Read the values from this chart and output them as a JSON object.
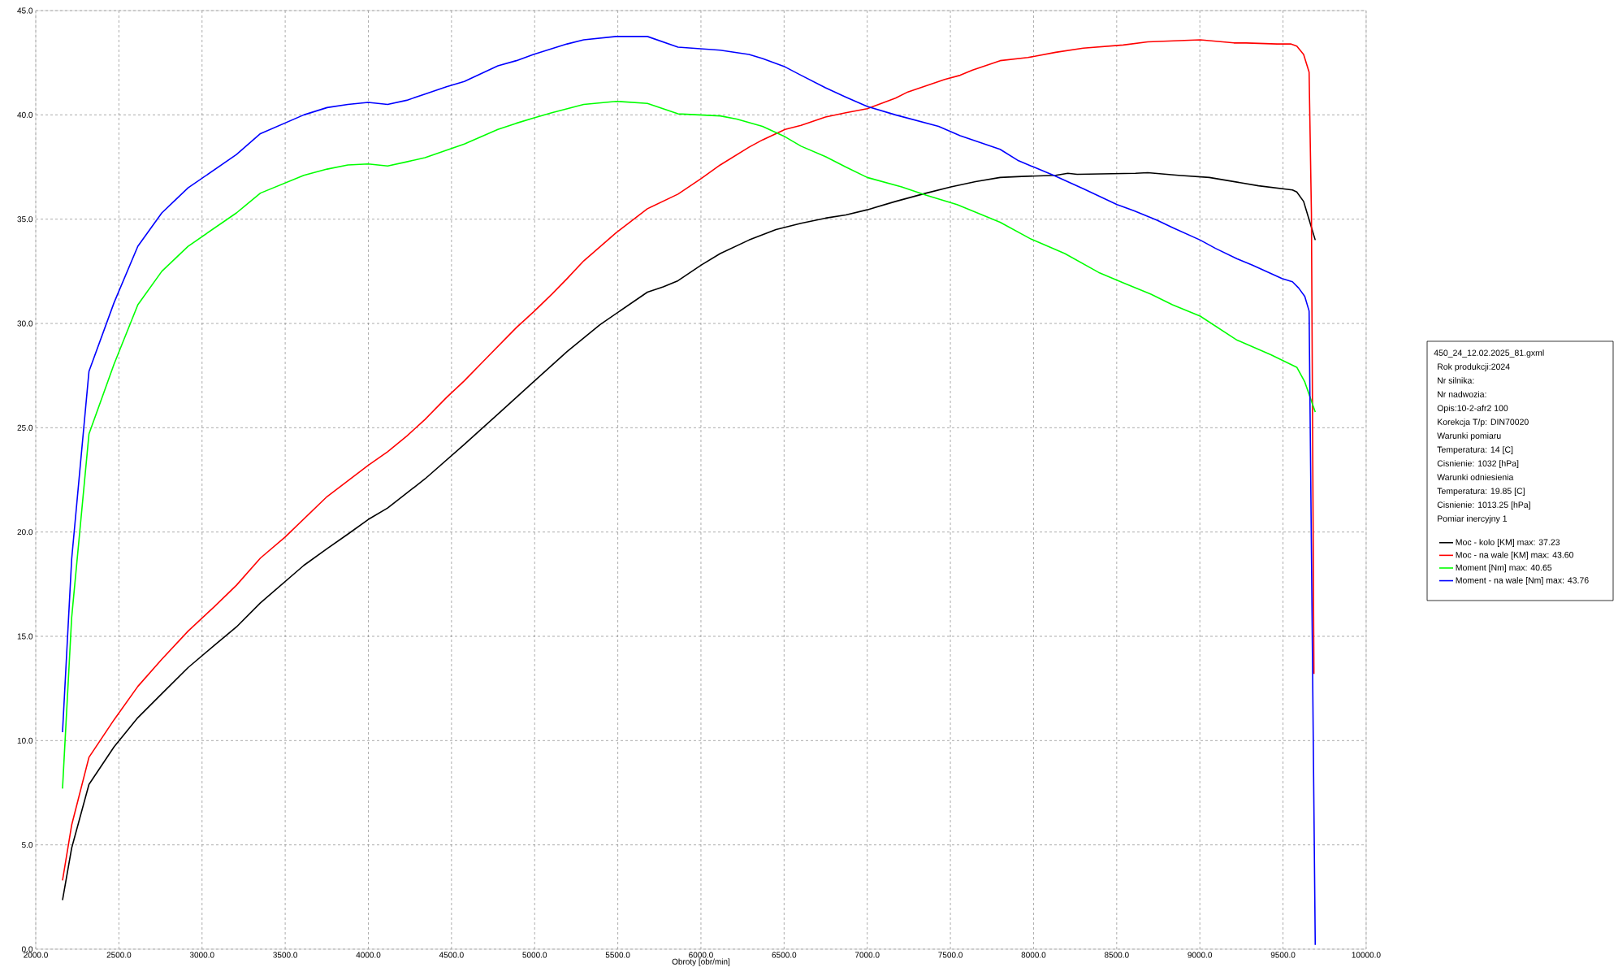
{
  "chart_data": {
    "type": "line",
    "xlabel": "Obroty [obr/min]",
    "xlim": [
      2000,
      10000
    ],
    "ylim": [
      0,
      45
    ],
    "xticks": [
      {
        "value": 2000,
        "label": "2000.0"
      },
      {
        "value": 2500,
        "label": "2500.0"
      },
      {
        "value": 3000,
        "label": "3000.0"
      },
      {
        "value": 3500,
        "label": "3500.0"
      },
      {
        "value": 4000,
        "label": "4000.0"
      },
      {
        "value": 4500,
        "label": "4500.0"
      },
      {
        "value": 5000,
        "label": "5000.0"
      },
      {
        "value": 5500,
        "label": "5500.0"
      },
      {
        "value": 6000,
        "label": "6000.0"
      },
      {
        "value": 6500,
        "label": "6500.0"
      },
      {
        "value": 7000,
        "label": "7000.0"
      },
      {
        "value": 7500,
        "label": "7500.0"
      },
      {
        "value": 8000,
        "label": "8000.0"
      },
      {
        "value": 8500,
        "label": "8500.0"
      },
      {
        "value": 9000,
        "label": "9000.0"
      },
      {
        "value": 9500,
        "label": "9500.0"
      },
      {
        "value": 10000,
        "label": "10000.0"
      }
    ],
    "yticks": [
      {
        "value": 0,
        "label": "0.0"
      },
      {
        "value": 5,
        "label": "5.0"
      },
      {
        "value": 10,
        "label": "10.0"
      },
      {
        "value": 15,
        "label": "15.0"
      },
      {
        "value": 20,
        "label": "20.0"
      },
      {
        "value": 25,
        "label": "25.0"
      },
      {
        "value": 30,
        "label": "30.0"
      },
      {
        "value": 35,
        "label": "35.0"
      },
      {
        "value": 40,
        "label": "40.0"
      },
      {
        "value": 45,
        "label": "45.0"
      }
    ],
    "grid": true,
    "legend": "right",
    "marker": "none",
    "line_style": "solid",
    "annotations": [
      "450_24_12.02.2025_81.gxml",
      "Rok produkcji:2024",
      "Nr silnika:",
      "Nr nadwozia:",
      "Opis:10-2-afr2 100",
      "Korekcja T/p: DIN70020",
      "Warunki pomiaru",
      "Temperatura: 14 [C]",
      "Cisnienie: 1032 [hPa]",
      "Warunki odniesienia",
      "Temperatura: 19.85 [C]",
      "Cisnienie: 1013.25 [hPa]",
      "Pomiar inercyjny 1"
    ],
    "series": [
      {
        "name": "Moc - kolo [KM] max: 37.23",
        "color": "#000000",
        "x": [
          2161,
          2216,
          2320,
          2471,
          2614,
          2758,
          2916,
          3071,
          3207,
          3351,
          3612,
          3752,
          3877,
          3999,
          4116,
          4341,
          4577,
          4779,
          4993,
          5195,
          5394,
          5678,
          5773,
          5862,
          6002,
          6116,
          6289,
          6451,
          6602,
          6749,
          6871,
          7000,
          7170,
          7355,
          7503,
          7651,
          7799,
          7929,
          8133,
          8206,
          8262,
          8613,
          8687,
          8872,
          9057,
          9242,
          9353,
          9557,
          9583,
          9624,
          9694
        ],
        "values": [
          2.35,
          4.85,
          7.9,
          9.7,
          11.1,
          12.25,
          13.5,
          14.55,
          15.45,
          16.6,
          18.4,
          19.2,
          19.9,
          20.6,
          21.15,
          22.55,
          24.2,
          25.65,
          27.2,
          28.65,
          29.95,
          31.5,
          31.75,
          32.05,
          32.8,
          33.35,
          34.0,
          34.5,
          34.8,
          35.05,
          35.2,
          35.45,
          35.85,
          36.25,
          36.55,
          36.8,
          37.0,
          37.05,
          37.1,
          37.2,
          37.15,
          37.2,
          37.23,
          37.1,
          37.0,
          36.75,
          36.6,
          36.4,
          36.3,
          35.85,
          34.0
        ]
      },
      {
        "name": "Moc - na wale [KM] max: 43.60",
        "color": "#ff0000",
        "x": [
          2161,
          2216,
          2320,
          2471,
          2614,
          2758,
          2916,
          3071,
          3207,
          3351,
          3498,
          3752,
          3999,
          4116,
          4231,
          4341,
          4470,
          4577,
          4687,
          4890,
          4993,
          5103,
          5195,
          5295,
          5490,
          5678,
          5862,
          6002,
          6116,
          6289,
          6370,
          6506,
          6602,
          6749,
          6871,
          7000,
          7170,
          7244,
          7466,
          7559,
          7633,
          7799,
          7966,
          8133,
          8299,
          8539,
          8687,
          9002,
          9205,
          9279,
          9464,
          9546,
          9583,
          9624,
          9657,
          9671,
          9686
        ],
        "values": [
          3.3,
          5.95,
          9.2,
          11.0,
          12.6,
          13.9,
          15.25,
          16.4,
          17.45,
          18.75,
          19.75,
          21.7,
          23.2,
          23.85,
          24.6,
          25.4,
          26.45,
          27.25,
          28.15,
          29.8,
          30.55,
          31.4,
          32.15,
          33.0,
          34.35,
          35.5,
          36.2,
          36.95,
          37.6,
          38.45,
          38.8,
          39.3,
          39.5,
          39.9,
          40.1,
          40.3,
          40.8,
          41.1,
          41.7,
          41.9,
          42.15,
          42.6,
          42.75,
          43.0,
          43.2,
          43.35,
          43.5,
          43.6,
          43.45,
          43.45,
          43.4,
          43.4,
          43.3,
          42.9,
          42.05,
          35.25,
          13.2
        ]
      },
      {
        "name": "Moment [Nm] max: 40.65",
        "color": "#00ff00",
        "x": [
          2161,
          2216,
          2320,
          2471,
          2614,
          2758,
          2916,
          3207,
          3351,
          3612,
          3752,
          3877,
          3999,
          4116,
          4231,
          4341,
          4577,
          4779,
          4890,
          4993,
          5103,
          5295,
          5490,
          5678,
          5862,
          6116,
          6215,
          6370,
          6506,
          6602,
          6749,
          6871,
          7000,
          7207,
          7355,
          7540,
          7799,
          7984,
          8188,
          8391,
          8539,
          8706,
          8835,
          9002,
          9224,
          9427,
          9583,
          9631,
          9694
        ],
        "values": [
          7.7,
          15.9,
          24.7,
          28.05,
          30.9,
          32.5,
          33.7,
          35.3,
          36.25,
          37.1,
          37.4,
          37.6,
          37.65,
          37.55,
          37.75,
          37.95,
          38.6,
          39.3,
          39.6,
          39.85,
          40.1,
          40.5,
          40.65,
          40.55,
          40.05,
          39.95,
          39.8,
          39.45,
          38.95,
          38.5,
          38.0,
          37.5,
          37.0,
          36.55,
          36.15,
          35.7,
          34.85,
          34.05,
          33.35,
          32.45,
          31.95,
          31.4,
          30.9,
          30.35,
          29.2,
          28.5,
          27.9,
          27.2,
          25.75
        ]
      },
      {
        "name": "Moment - na wale [Nm] max: 43.76",
        "color": "#0000ff",
        "x": [
          2161,
          2216,
          2320,
          2471,
          2614,
          2758,
          2916,
          3207,
          3351,
          3612,
          3752,
          3877,
          3999,
          4116,
          4231,
          4341,
          4470,
          4577,
          4779,
          4890,
          4993,
          5195,
          5295,
          5490,
          5678,
          5862,
          6116,
          6289,
          6370,
          6506,
          6602,
          6749,
          6871,
          7000,
          7170,
          7429,
          7559,
          7799,
          7910,
          8121,
          8302,
          8502,
          8606,
          8743,
          8835,
          9002,
          9094,
          9224,
          9316,
          9494,
          9557,
          9594,
          9631,
          9657,
          9694
        ],
        "values": [
          10.4,
          18.7,
          27.7,
          31.0,
          33.7,
          35.3,
          36.5,
          38.1,
          39.1,
          40.0,
          40.35,
          40.5,
          40.6,
          40.5,
          40.7,
          41.0,
          41.35,
          41.6,
          42.35,
          42.6,
          42.9,
          43.4,
          43.6,
          43.76,
          43.76,
          43.25,
          43.1,
          42.9,
          42.7,
          42.3,
          41.9,
          41.3,
          40.85,
          40.4,
          40.0,
          39.45,
          39.0,
          38.35,
          37.8,
          37.1,
          36.45,
          35.7,
          35.4,
          34.95,
          34.6,
          34.0,
          33.6,
          33.1,
          32.8,
          32.15,
          32.0,
          31.7,
          31.3,
          30.6,
          0.2
        ]
      }
    ]
  }
}
